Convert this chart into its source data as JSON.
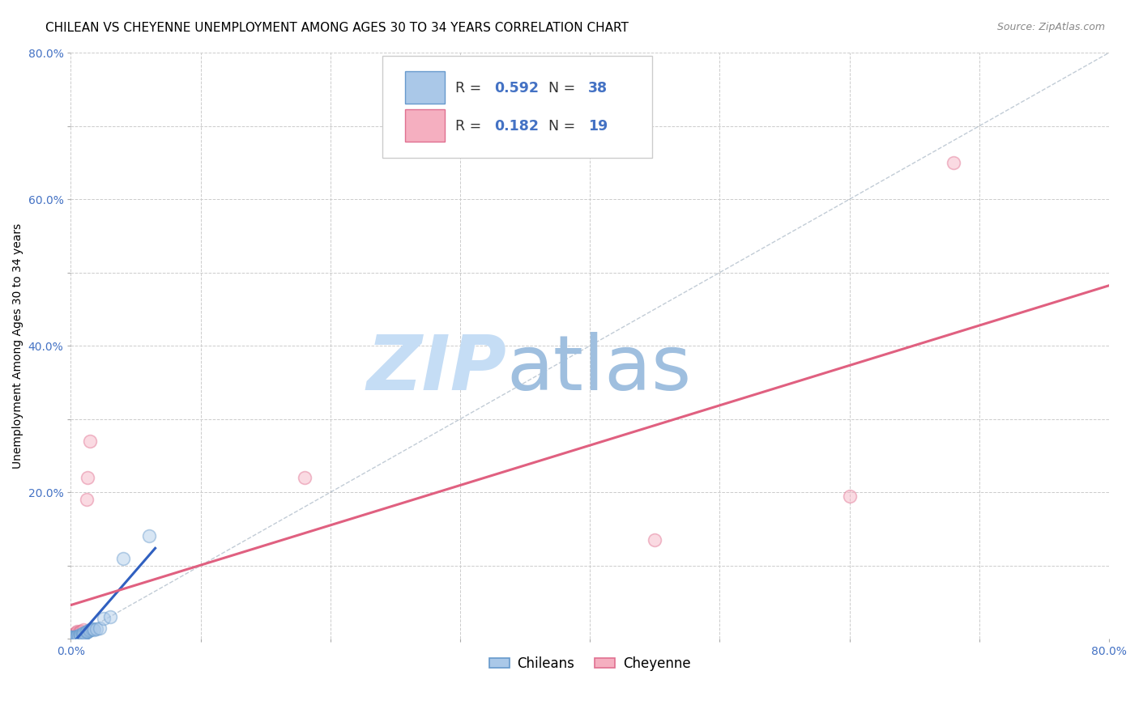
{
  "title": "CHILEAN VS CHEYENNE UNEMPLOYMENT AMONG AGES 30 TO 34 YEARS CORRELATION CHART",
  "source": "Source: ZipAtlas.com",
  "xlabel": "",
  "ylabel": "Unemployment Among Ages 30 to 34 years",
  "xlim": [
    0,
    0.8
  ],
  "ylim": [
    0,
    0.8
  ],
  "xticks": [
    0.0,
    0.1,
    0.2,
    0.3,
    0.4,
    0.5,
    0.6,
    0.7,
    0.8
  ],
  "yticks": [
    0.0,
    0.1,
    0.2,
    0.3,
    0.4,
    0.5,
    0.6,
    0.7,
    0.8
  ],
  "xticklabels": [
    "0.0%",
    "",
    "",
    "",
    "",
    "",
    "",
    "",
    "80.0%"
  ],
  "yticklabels": [
    "",
    "",
    "20.0%",
    "",
    "40.0%",
    "",
    "60.0%",
    "",
    "80.0%"
  ],
  "chilean_color": "#aac8e8",
  "cheyenne_color": "#f5afc0",
  "chilean_edge": "#6699cc",
  "cheyenne_edge": "#e07090",
  "blue_line_color": "#3060c0",
  "pink_line_color": "#e06080",
  "diag_line_color": "#99aabb",
  "R_chilean": 0.592,
  "N_chilean": 38,
  "R_cheyenne": 0.182,
  "N_cheyenne": 19,
  "legend_chilean": "Chileans",
  "legend_cheyenne": "Cheyenne",
  "chileans_x": [
    0.0,
    0.0,
    0.0,
    0.0,
    0.0,
    0.0,
    0.0,
    0.0,
    0.003,
    0.003,
    0.003,
    0.004,
    0.005,
    0.005,
    0.006,
    0.006,
    0.007,
    0.007,
    0.008,
    0.009,
    0.009,
    0.01,
    0.01,
    0.011,
    0.012,
    0.012,
    0.013,
    0.014,
    0.015,
    0.016,
    0.017,
    0.018,
    0.02,
    0.022,
    0.025,
    0.03,
    0.04,
    0.06
  ],
  "chileans_y": [
    0.0,
    0.0,
    0.0,
    0.001,
    0.001,
    0.002,
    0.002,
    0.003,
    0.001,
    0.002,
    0.003,
    0.003,
    0.003,
    0.004,
    0.003,
    0.004,
    0.005,
    0.006,
    0.005,
    0.006,
    0.007,
    0.006,
    0.008,
    0.008,
    0.009,
    0.01,
    0.01,
    0.011,
    0.012,
    0.013,
    0.014,
    0.012,
    0.014,
    0.015,
    0.028,
    0.03,
    0.11,
    0.14
  ],
  "cheyenne_x": [
    0.0,
    0.0,
    0.0,
    0.002,
    0.003,
    0.004,
    0.005,
    0.005,
    0.006,
    0.007,
    0.008,
    0.01,
    0.012,
    0.013,
    0.015,
    0.18,
    0.45,
    0.6,
    0.68
  ],
  "cheyenne_y": [
    0.0,
    0.002,
    0.004,
    0.005,
    0.007,
    0.008,
    0.009,
    0.01,
    0.008,
    0.01,
    0.01,
    0.012,
    0.19,
    0.22,
    0.27,
    0.22,
    0.135,
    0.195,
    0.65
  ],
  "background_color": "#ffffff",
  "grid_color": "#cccccc",
  "watermark_zip": "ZIP",
  "watermark_atlas": "atlas",
  "watermark_color_zip": "#c5ddf5",
  "watermark_color_atlas": "#9fbfdf",
  "title_fontsize": 11,
  "label_fontsize": 10,
  "tick_fontsize": 10,
  "tick_color": "#4472c4",
  "marker_size": 130,
  "marker_alpha": 0.45,
  "marker_lw": 1.2
}
